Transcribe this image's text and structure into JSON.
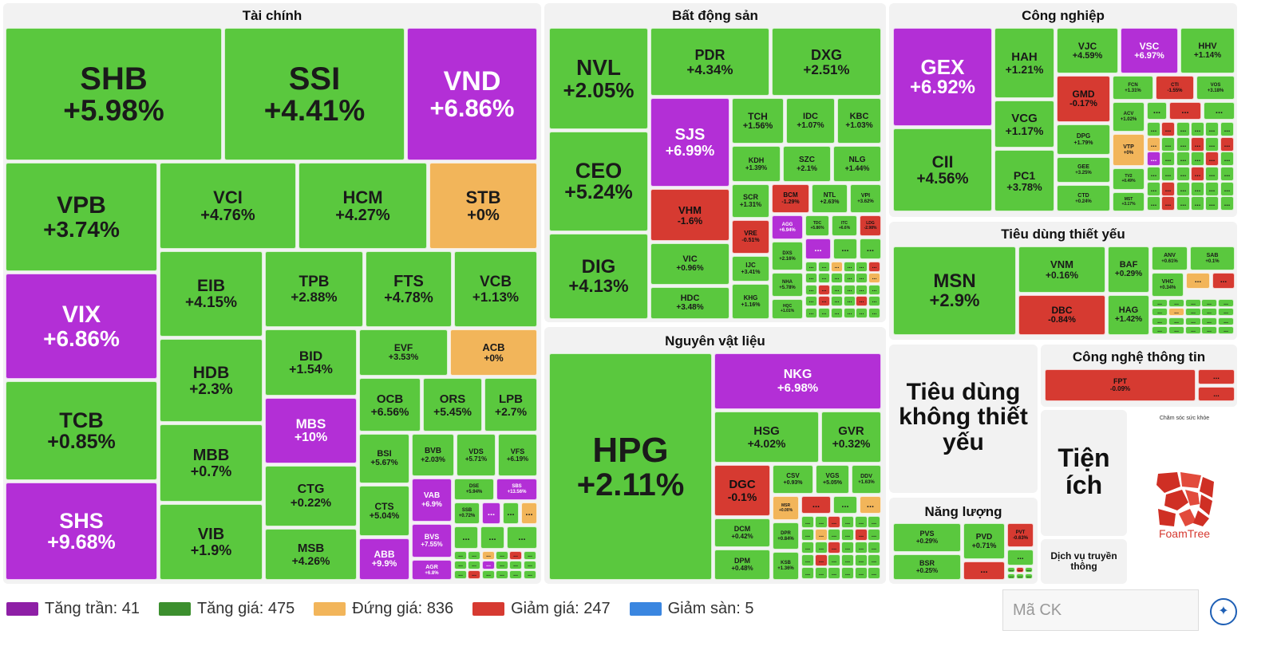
{
  "colors": {
    "ceiling": "#b32fd6",
    "up": "#5ac83e",
    "flat": "#f2b55a",
    "down": "#d63a31",
    "floor": "#3a86e0"
  },
  "chart_data": {
    "type": "treemap",
    "sectors": [
      {
        "name": "Tài chính",
        "stocks": [
          [
            "SHB",
            "+5.98%"
          ],
          [
            "SSI",
            "+4.41%"
          ],
          [
            "VND",
            "+6.86%"
          ],
          [
            "VPB",
            "+3.74%"
          ],
          [
            "VCI",
            "+4.76%"
          ],
          [
            "HCM",
            "+4.27%"
          ],
          [
            "STB",
            "+0%"
          ],
          [
            "VIX",
            "+6.86%"
          ],
          [
            "EIB",
            "+4.15%"
          ],
          [
            "TPB",
            "+2.88%"
          ],
          [
            "FTS",
            "+4.78%"
          ],
          [
            "VCB",
            "+1.13%"
          ],
          [
            "TCB",
            "+0.85%"
          ],
          [
            "HDB",
            "+2.3%"
          ],
          [
            "BID",
            "+1.54%"
          ],
          [
            "EVF",
            "+3.53%"
          ],
          [
            "ACB",
            "+0%"
          ],
          [
            "MBB",
            "+0.7%"
          ],
          [
            "MBS",
            "+10%"
          ],
          [
            "OCB",
            "+6.56%"
          ],
          [
            "ORS",
            "+5.45%"
          ],
          [
            "LPB",
            "+2.7%"
          ],
          [
            "SHS",
            "+9.68%"
          ],
          [
            "BSI",
            "+5.67%"
          ],
          [
            "BVB",
            "+2.03%"
          ],
          [
            "VDS",
            "+5.71%"
          ],
          [
            "VFS",
            "+6.19%"
          ],
          [
            "VIB",
            "+1.9%"
          ],
          [
            "CTG",
            "+0.22%"
          ],
          [
            "CTS",
            "+5.04%"
          ],
          [
            "VAB",
            "+6.9%"
          ],
          [
            "DSE",
            "+5.94%"
          ],
          [
            "SBS",
            "+13.56%"
          ],
          [
            "SSB",
            "+0.72%"
          ],
          [
            "BVS",
            "+7.55%"
          ],
          [
            "MSB",
            "+4.26%"
          ],
          [
            "ABB",
            "+9.9%"
          ],
          [
            "AGR",
            "+6.8%"
          ]
        ]
      },
      {
        "name": "Bất động sản",
        "stocks": [
          [
            "NVL",
            "+2.05%"
          ],
          [
            "PDR",
            "+4.34%"
          ],
          [
            "DXG",
            "+2.51%"
          ],
          [
            "SJS",
            "+6.99%"
          ],
          [
            "TCH",
            "+1.56%"
          ],
          [
            "IDC",
            "+1.07%"
          ],
          [
            "KBC",
            "+1.03%"
          ],
          [
            "CEO",
            "+5.24%"
          ],
          [
            "KDH",
            "+1.39%"
          ],
          [
            "SZC",
            "+2.1%"
          ],
          [
            "NLG",
            "+1.44%"
          ],
          [
            "VHM",
            "-1.6%"
          ],
          [
            "SCR",
            "+1.31%"
          ],
          [
            "BCM",
            "-1.29%"
          ],
          [
            "NTL",
            "+2.63%"
          ],
          [
            "VPI",
            "+3.62%"
          ],
          [
            "VRE",
            "-0.51%"
          ],
          [
            "AGG",
            "+6.94%"
          ],
          [
            "TDC",
            "+5.86%"
          ],
          [
            "ITC",
            "+6.6%"
          ],
          [
            "LDG",
            "-2.98%"
          ],
          [
            "DIG",
            "+4.13%"
          ],
          [
            "VIC",
            "+0.96%"
          ],
          [
            "IJC",
            "+3.41%"
          ],
          [
            "DXS",
            "+2.16%"
          ],
          [
            "NHA",
            "+5.78%"
          ],
          [
            "HDC",
            "+3.48%"
          ],
          [
            "KHG",
            "+1.16%"
          ],
          [
            "HQC",
            "+1.01%"
          ]
        ]
      },
      {
        "name": "Công nghiệp",
        "stocks": [
          [
            "GEX",
            "+6.92%"
          ],
          [
            "HAH",
            "+1.21%"
          ],
          [
            "VJC",
            "+4.59%"
          ],
          [
            "VSC",
            "+6.97%"
          ],
          [
            "HHV",
            "+1.14%"
          ],
          [
            "GMD",
            "-0.17%"
          ],
          [
            "FCN",
            "+1.31%"
          ],
          [
            "CTI",
            "-1.55%"
          ],
          [
            "VOS",
            "+3.18%"
          ],
          [
            "VCG",
            "+1.17%"
          ],
          [
            "ACV",
            "+1.02%"
          ],
          [
            "DPG",
            "+1.79%"
          ],
          [
            "VTP",
            "+0%"
          ],
          [
            "CII",
            "+4.56%"
          ],
          [
            "PC1",
            "+3.78%"
          ],
          [
            "GEE",
            "+3.25%"
          ],
          [
            "TV2",
            "+0.49%"
          ],
          [
            "CTD",
            "+0.24%"
          ],
          [
            "MST",
            "+3.17%"
          ]
        ]
      },
      {
        "name": "Tiêu dùng thiết yếu",
        "stocks": [
          [
            "MSN",
            "+2.9%"
          ],
          [
            "VNM",
            "+0.16%"
          ],
          [
            "BAF",
            "+0.29%"
          ],
          [
            "ANV",
            "+0.61%"
          ],
          [
            "SAB",
            "+0.1%"
          ],
          [
            "VHC",
            "+0.34%"
          ],
          [
            "DBC",
            "-0.84%"
          ],
          [
            "HAG",
            "+1.42%"
          ]
        ]
      },
      {
        "name": "Nguyên vật liệu",
        "stocks": [
          [
            "HPG",
            "+2.11%"
          ],
          [
            "NKG",
            "+6.98%"
          ],
          [
            "HSG",
            "+4.02%"
          ],
          [
            "GVR",
            "+0.32%"
          ],
          [
            "DGC",
            "-0.1%"
          ],
          [
            "CSV",
            "+0.93%"
          ],
          [
            "VGS",
            "+5.05%"
          ],
          [
            "DDV",
            "+1.63%"
          ],
          [
            "MSR",
            "+0.00%"
          ],
          [
            "DCM",
            "+0.42%"
          ],
          [
            "DPR",
            "+0.84%"
          ],
          [
            "DPM",
            "+0.48%"
          ],
          [
            "KSB",
            "+1.36%"
          ]
        ]
      },
      {
        "name": "Công nghệ thông tin",
        "stocks": [
          [
            "FPT",
            "-0.09%"
          ]
        ]
      },
      {
        "name": "Năng lượng",
        "stocks": [
          [
            "PVS",
            "+0.29%"
          ],
          [
            "PVD",
            "+0.71%"
          ],
          [
            "PVT",
            "-0.63%"
          ],
          [
            "BSR",
            "+0.25%"
          ]
        ]
      },
      {
        "name": "Tiêu dùng không thiết yếu",
        "stocks": []
      },
      {
        "name": "Tiện ích",
        "stocks": []
      },
      {
        "name": "Dịch vụ truyền thông",
        "stocks": []
      },
      {
        "name": "Chăm sóc sức khỏe",
        "stocks": []
      }
    ]
  },
  "more_label": "...",
  "legend": [
    {
      "label": "Tăng trần: 41",
      "color": "#b32fd6"
    },
    {
      "label": "Tăng giá: 475",
      "color": "#3c8f2e"
    },
    {
      "label": "Đứng giá: 836",
      "color": "#f2b55a"
    },
    {
      "label": "Giảm giá: 247",
      "color": "#d63a31"
    },
    {
      "label": "Giảm sàn: 5",
      "color": "#3a86e0"
    }
  ],
  "search": {
    "placeholder": "Mã CK"
  },
  "logo": {
    "text": "FoamTree"
  }
}
